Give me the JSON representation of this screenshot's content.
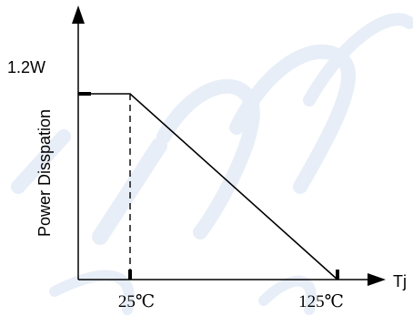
{
  "chart_data": {
    "type": "line",
    "title": "",
    "xlabel": "Tj",
    "ylabel": "Power Disspation",
    "y_tick_labels": [
      "1.2W"
    ],
    "x_tick_labels": [
      "25℃",
      "125℃"
    ],
    "x_ticks": [
      25,
      125
    ],
    "y_ticks": [
      1.2
    ],
    "xlim": [
      0,
      150
    ],
    "ylim": [
      0,
      1.6
    ],
    "series": [
      {
        "x": [
          0,
          25,
          125
        ],
        "y": [
          1.2,
          1.2,
          0
        ]
      }
    ],
    "reference_lines": [
      {
        "orientation": "vertical",
        "x": 25,
        "style": "dashed"
      }
    ],
    "grid": false,
    "legend": "none",
    "colors": {
      "line": "#000000",
      "axis": "#000000",
      "watermark": "#e8eef7"
    }
  }
}
